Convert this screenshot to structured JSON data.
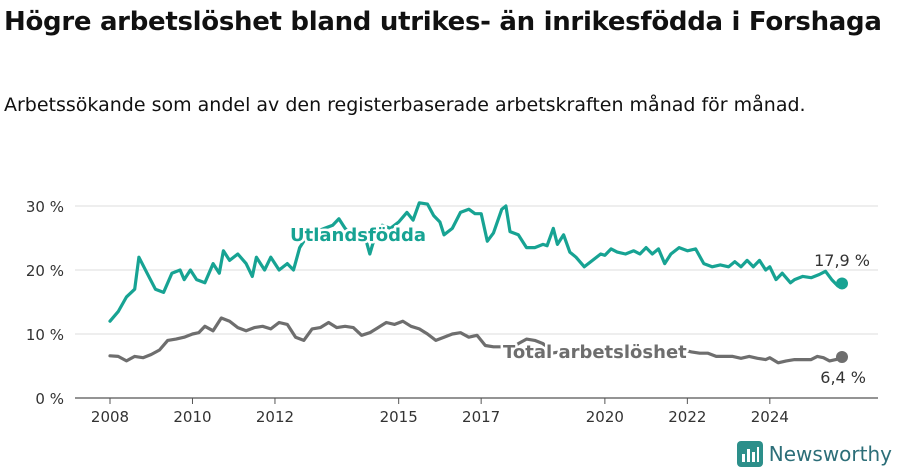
{
  "title": "Högre arbetslöshet bland utrikes- än inrikesfödda i Forshaga",
  "subtitle": "Arbetssökande som andel av den registerbaserade arbetskraften månad för månad.",
  "brand": "Newsworthy",
  "colors": {
    "foreign": "#17a393",
    "total": "#6e6e6e",
    "grid": "#dddddd",
    "axis": "#555555",
    "text": "#333333"
  },
  "chart_data": {
    "type": "line",
    "title": "Högre arbetslöshet bland utrikes- än inrikesfödda i Forshaga",
    "xlabel": "",
    "ylabel": "",
    "ylim": [
      0,
      30
    ],
    "xlim": [
      2008.0,
      2025.75
    ],
    "grid": true,
    "y_ticks": [
      {
        "value": 0,
        "label": "0 %"
      },
      {
        "value": 10,
        "label": "10 %"
      },
      {
        "value": 20,
        "label": "20 %"
      },
      {
        "value": 30,
        "label": "30 %"
      }
    ],
    "x_ticks": [
      {
        "value": 2008,
        "label": "2008"
      },
      {
        "value": 2010,
        "label": "2010"
      },
      {
        "value": 2012,
        "label": "2012"
      },
      {
        "value": 2015,
        "label": "2015"
      },
      {
        "value": 2017,
        "label": "2017"
      },
      {
        "value": 2020,
        "label": "2020"
      },
      {
        "value": 2022,
        "label": "2022"
      },
      {
        "value": 2024,
        "label": "2024"
      }
    ],
    "series": [
      {
        "name": "Utlandsfödda",
        "color": "#17a393",
        "end_label": "17,9 %",
        "points": [
          [
            2008.0,
            12.0
          ],
          [
            2008.2,
            13.5
          ],
          [
            2008.4,
            15.8
          ],
          [
            2008.6,
            17.0
          ],
          [
            2008.7,
            22.0
          ],
          [
            2008.9,
            19.5
          ],
          [
            2009.1,
            17.0
          ],
          [
            2009.3,
            16.5
          ],
          [
            2009.5,
            19.5
          ],
          [
            2009.7,
            20.0
          ],
          [
            2009.8,
            18.5
          ],
          [
            2009.95,
            20.0
          ],
          [
            2010.1,
            18.5
          ],
          [
            2010.3,
            18.0
          ],
          [
            2010.5,
            21.0
          ],
          [
            2010.65,
            19.5
          ],
          [
            2010.75,
            23.0
          ],
          [
            2010.9,
            21.5
          ],
          [
            2011.1,
            22.5
          ],
          [
            2011.3,
            21.0
          ],
          [
            2011.45,
            19.0
          ],
          [
            2011.55,
            22.0
          ],
          [
            2011.75,
            20.0
          ],
          [
            2011.9,
            22.0
          ],
          [
            2012.1,
            20.0
          ],
          [
            2012.3,
            21.0
          ],
          [
            2012.45,
            20.0
          ],
          [
            2012.6,
            23.5
          ],
          [
            2012.8,
            25.5
          ],
          [
            2013.0,
            26.0
          ],
          [
            2013.2,
            26.5
          ],
          [
            2013.4,
            27.0
          ],
          [
            2013.55,
            28.0
          ],
          [
            2013.7,
            26.5
          ],
          [
            2013.85,
            25.5
          ],
          [
            2014.0,
            25.8
          ],
          [
            2014.15,
            26.0
          ],
          [
            2014.3,
            22.5
          ],
          [
            2014.45,
            25.8
          ],
          [
            2014.6,
            27.0
          ],
          [
            2014.8,
            26.5
          ],
          [
            2015.0,
            27.5
          ],
          [
            2015.2,
            29.0
          ],
          [
            2015.35,
            27.8
          ],
          [
            2015.5,
            30.5
          ],
          [
            2015.7,
            30.3
          ],
          [
            2015.85,
            28.5
          ],
          [
            2016.0,
            27.5
          ],
          [
            2016.1,
            25.5
          ],
          [
            2016.3,
            26.5
          ],
          [
            2016.5,
            29.0
          ],
          [
            2016.7,
            29.5
          ],
          [
            2016.85,
            28.8
          ],
          [
            2017.0,
            28.8
          ],
          [
            2017.15,
            24.5
          ],
          [
            2017.3,
            25.8
          ],
          [
            2017.5,
            29.5
          ],
          [
            2017.6,
            30.0
          ],
          [
            2017.7,
            26.0
          ],
          [
            2017.9,
            25.5
          ],
          [
            2018.1,
            23.5
          ],
          [
            2018.3,
            23.5
          ],
          [
            2018.5,
            24.0
          ],
          [
            2018.6,
            23.8
          ],
          [
            2018.75,
            26.5
          ],
          [
            2018.85,
            24.0
          ],
          [
            2019.0,
            25.5
          ],
          [
            2019.15,
            22.8
          ],
          [
            2019.3,
            22.0
          ],
          [
            2019.5,
            20.5
          ],
          [
            2019.7,
            21.5
          ],
          [
            2019.9,
            22.5
          ],
          [
            2020.0,
            22.3
          ],
          [
            2020.15,
            23.3
          ],
          [
            2020.3,
            22.8
          ],
          [
            2020.5,
            22.5
          ],
          [
            2020.7,
            23.0
          ],
          [
            2020.85,
            22.5
          ],
          [
            2021.0,
            23.5
          ],
          [
            2021.15,
            22.5
          ],
          [
            2021.3,
            23.3
          ],
          [
            2021.45,
            21.0
          ],
          [
            2021.6,
            22.5
          ],
          [
            2021.8,
            23.5
          ],
          [
            2022.0,
            23.0
          ],
          [
            2022.2,
            23.3
          ],
          [
            2022.4,
            21.0
          ],
          [
            2022.6,
            20.5
          ],
          [
            2022.8,
            20.8
          ],
          [
            2023.0,
            20.5
          ],
          [
            2023.15,
            21.3
          ],
          [
            2023.3,
            20.5
          ],
          [
            2023.45,
            21.5
          ],
          [
            2023.6,
            20.5
          ],
          [
            2023.75,
            21.5
          ],
          [
            2023.9,
            20.0
          ],
          [
            2024.0,
            20.5
          ],
          [
            2024.15,
            18.5
          ],
          [
            2024.3,
            19.5
          ],
          [
            2024.5,
            18.0
          ],
          [
            2024.6,
            18.5
          ],
          [
            2024.8,
            19.0
          ],
          [
            2025.0,
            18.8
          ],
          [
            2025.2,
            19.3
          ],
          [
            2025.35,
            19.8
          ],
          [
            2025.5,
            18.5
          ],
          [
            2025.65,
            17.5
          ],
          [
            2025.75,
            17.9
          ]
        ]
      },
      {
        "name": "Total arbetslöshet",
        "color": "#6e6e6e",
        "end_label": "6,4 %",
        "points": [
          [
            2008.0,
            6.6
          ],
          [
            2008.2,
            6.5
          ],
          [
            2008.4,
            5.8
          ],
          [
            2008.6,
            6.5
          ],
          [
            2008.8,
            6.3
          ],
          [
            2009.0,
            6.8
          ],
          [
            2009.2,
            7.5
          ],
          [
            2009.4,
            9.0
          ],
          [
            2009.6,
            9.2
          ],
          [
            2009.8,
            9.5
          ],
          [
            2010.0,
            10.0
          ],
          [
            2010.15,
            10.2
          ],
          [
            2010.3,
            11.2
          ],
          [
            2010.5,
            10.5
          ],
          [
            2010.7,
            12.5
          ],
          [
            2010.9,
            12.0
          ],
          [
            2011.1,
            11.0
          ],
          [
            2011.3,
            10.5
          ],
          [
            2011.5,
            11.0
          ],
          [
            2011.7,
            11.2
          ],
          [
            2011.9,
            10.8
          ],
          [
            2012.1,
            11.8
          ],
          [
            2012.3,
            11.5
          ],
          [
            2012.5,
            9.5
          ],
          [
            2012.7,
            9.0
          ],
          [
            2012.9,
            10.8
          ],
          [
            2013.1,
            11.0
          ],
          [
            2013.3,
            11.8
          ],
          [
            2013.5,
            11.0
          ],
          [
            2013.7,
            11.2
          ],
          [
            2013.9,
            11.0
          ],
          [
            2014.1,
            9.8
          ],
          [
            2014.3,
            10.2
          ],
          [
            2014.5,
            11.0
          ],
          [
            2014.7,
            11.8
          ],
          [
            2014.9,
            11.5
          ],
          [
            2015.1,
            12.0
          ],
          [
            2015.3,
            11.2
          ],
          [
            2015.5,
            10.8
          ],
          [
            2015.7,
            10.0
          ],
          [
            2015.9,
            9.0
          ],
          [
            2016.1,
            9.5
          ],
          [
            2016.3,
            10.0
          ],
          [
            2016.5,
            10.2
          ],
          [
            2016.7,
            9.5
          ],
          [
            2016.9,
            9.8
          ],
          [
            2017.1,
            8.2
          ],
          [
            2017.3,
            8.0
          ],
          [
            2017.5,
            8.0
          ],
          [
            2017.7,
            7.5
          ],
          [
            2017.9,
            8.5
          ],
          [
            2018.1,
            9.2
          ],
          [
            2018.3,
            9.0
          ],
          [
            2018.5,
            8.5
          ],
          [
            2018.7,
            7.0
          ],
          [
            2018.9,
            7.2
          ],
          [
            2019.1,
            7.5
          ],
          [
            2019.3,
            7.8
          ],
          [
            2019.5,
            8.0
          ],
          [
            2019.7,
            7.5
          ],
          [
            2019.9,
            7.5
          ],
          [
            2020.1,
            7.2
          ],
          [
            2020.3,
            7.0
          ],
          [
            2020.5,
            7.0
          ],
          [
            2020.7,
            7.2
          ],
          [
            2020.9,
            7.0
          ],
          [
            2021.1,
            7.2
          ],
          [
            2021.3,
            7.0
          ],
          [
            2021.5,
            7.2
          ],
          [
            2021.7,
            7.0
          ],
          [
            2021.9,
            7.5
          ],
          [
            2022.1,
            7.2
          ],
          [
            2022.3,
            7.0
          ],
          [
            2022.5,
            7.0
          ],
          [
            2022.7,
            6.5
          ],
          [
            2022.9,
            6.5
          ],
          [
            2023.1,
            6.5
          ],
          [
            2023.3,
            6.2
          ],
          [
            2023.5,
            6.5
          ],
          [
            2023.7,
            6.2
          ],
          [
            2023.9,
            6.0
          ],
          [
            2024.0,
            6.3
          ],
          [
            2024.2,
            5.5
          ],
          [
            2024.4,
            5.8
          ],
          [
            2024.6,
            6.0
          ],
          [
            2024.8,
            6.0
          ],
          [
            2025.0,
            6.0
          ],
          [
            2025.15,
            6.5
          ],
          [
            2025.3,
            6.3
          ],
          [
            2025.45,
            5.8
          ],
          [
            2025.6,
            6.0
          ],
          [
            2025.75,
            6.4
          ]
        ]
      }
    ]
  }
}
